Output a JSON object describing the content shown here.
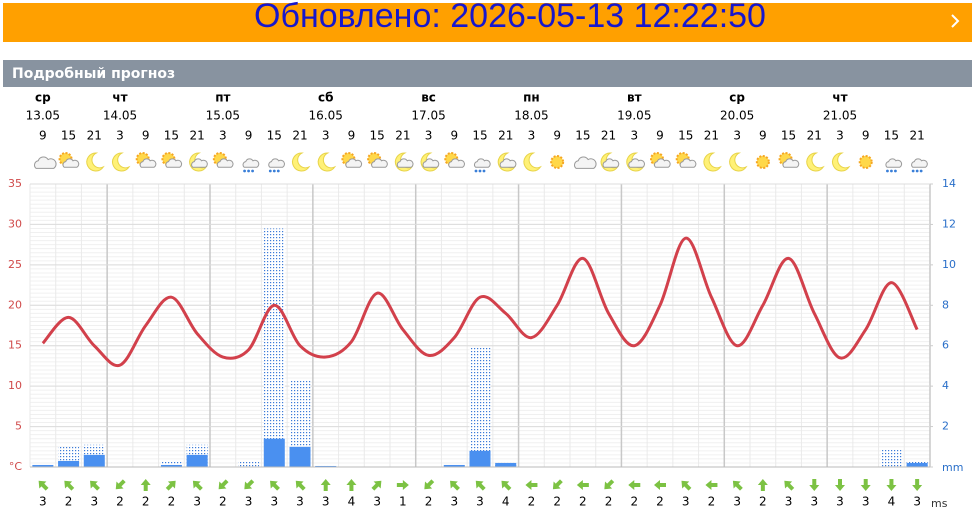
{
  "header": {
    "title": "Обновлено: 2026-05-13 12:22:50",
    "section": "Подробный прогноз"
  },
  "chart_data": {
    "type": "line",
    "days": [
      {
        "weekday": "ср",
        "date": "13.05"
      },
      {
        "weekday": "чт",
        "date": "14.05"
      },
      {
        "weekday": "пт",
        "date": "15.05"
      },
      {
        "weekday": "сб",
        "date": "16.05"
      },
      {
        "weekday": "вс",
        "date": "17.05"
      },
      {
        "weekday": "пн",
        "date": "18.05"
      },
      {
        "weekday": "вт",
        "date": "19.05"
      },
      {
        "weekday": "ср",
        "date": "20.05"
      },
      {
        "weekday": "чт",
        "date": "21.05"
      }
    ],
    "hours": [
      9,
      15,
      21,
      3,
      9,
      15,
      21,
      3,
      9,
      15,
      21,
      3,
      9,
      15,
      21,
      3,
      9,
      15,
      21,
      3,
      9,
      15,
      21,
      3,
      9,
      15,
      21,
      3,
      9,
      15,
      21,
      3,
      9,
      15,
      21
    ],
    "temperature": {
      "color": "#d2404b",
      "values": [
        15.3,
        18.5,
        15,
        12.6,
        17.5,
        21,
        16.5,
        13.6,
        14.5,
        20,
        15,
        13.6,
        15.5,
        21.5,
        17,
        13.8,
        16,
        21,
        19,
        16,
        20,
        25.8,
        19,
        15,
        20,
        28.3,
        21,
        15,
        20,
        25.8,
        19,
        13.5,
        17,
        22.8,
        17
      ]
    },
    "precip_max": {
      "color": "#4a86e8",
      "values": [
        0.1,
        1,
        1.1,
        0,
        0,
        0.3,
        1.1,
        0,
        0.3,
        11.8,
        4.3,
        0.05,
        0,
        0,
        0,
        0,
        0.1,
        5.9,
        0.2,
        0,
        0,
        0,
        0,
        0,
        0,
        0,
        0,
        0,
        0,
        0,
        0,
        0,
        0,
        0.9,
        0.3
      ]
    },
    "precip": {
      "color": "#4a90f0",
      "values": [
        0.1,
        0.3,
        0.6,
        0,
        0,
        0.1,
        0.6,
        0,
        0,
        1.4,
        1,
        0.05,
        0,
        0,
        0,
        0,
        0.1,
        0.8,
        0.2,
        0,
        0,
        0,
        0,
        0,
        0,
        0,
        0,
        0,
        0,
        0,
        0,
        0,
        0,
        0,
        0.2
      ]
    },
    "wind": {
      "color": "#7cc243",
      "unit": "ms",
      "speed": [
        3,
        2,
        3,
        2,
        2,
        2,
        3,
        2,
        3,
        3,
        3,
        3,
        4,
        3,
        1,
        2,
        3,
        3,
        4,
        2,
        2,
        2,
        2,
        2,
        2,
        3,
        2,
        3,
        2,
        3,
        3,
        3,
        3,
        4,
        3
      ],
      "direction": [
        315,
        315,
        315,
        225,
        0,
        45,
        315,
        225,
        225,
        315,
        315,
        0,
        0,
        45,
        90,
        225,
        315,
        315,
        315,
        270,
        225,
        270,
        225,
        270,
        270,
        315,
        270,
        315,
        0,
        315,
        180,
        180,
        180,
        180,
        180
      ]
    },
    "ylim": [
      0,
      35
    ],
    "yticks": [
      {
        "value": 0,
        "label": "°C"
      },
      5,
      10,
      15,
      20,
      25,
      30,
      35
    ],
    "y2lim": [
      0,
      14
    ],
    "y2ticks": [
      {
        "value": 0,
        "label": "mm"
      },
      2,
      4,
      6,
      8,
      10,
      12,
      14
    ],
    "grid": true
  }
}
